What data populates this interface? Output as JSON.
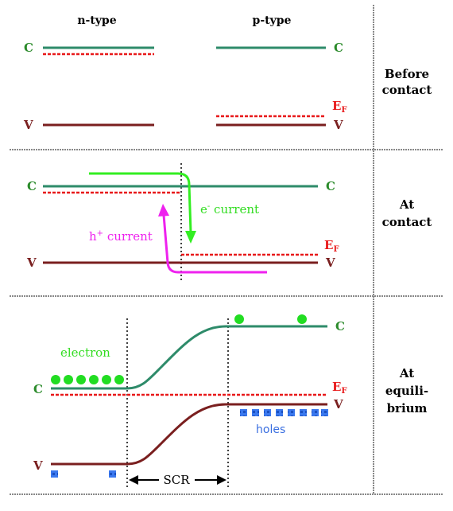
{
  "headers": {
    "n_type": "n-type",
    "p_type": "p-type"
  },
  "rows": {
    "before": {
      "line1": "Before",
      "line2": "contact"
    },
    "at_contact": {
      "line1": "At",
      "line2": "contact"
    },
    "equilibrium": {
      "line1": "At",
      "line2": "equili-",
      "line3": "brium"
    }
  },
  "band_labels": {
    "conduction": "C",
    "valence": "V",
    "fermi": "E",
    "fermi_sub": "F"
  },
  "annotations": {
    "electron_current": "e",
    "electron_current_sup": "-",
    "electron_current_word": " current",
    "hole_current": "h",
    "hole_current_sup": "+",
    "hole_current_word": " current",
    "electron": "electron",
    "holes": "holes",
    "scr": "SCR"
  },
  "colors": {
    "conduction_band": "#2e8b6a",
    "valence_band": "#7a1f1f",
    "fermi_level": "#e8191a",
    "electron_current_arrow": "#33ee22",
    "hole_current_arrow": "#ee22ee",
    "electron_dot": "#22dd22",
    "hole_square": "#3a78ee",
    "label_green": "#2b8b2b",
    "label_maroon": "#7a1f1f",
    "label_red": "#e8191a",
    "hole_text": "#3a6fe0",
    "divider": "#888888"
  }
}
